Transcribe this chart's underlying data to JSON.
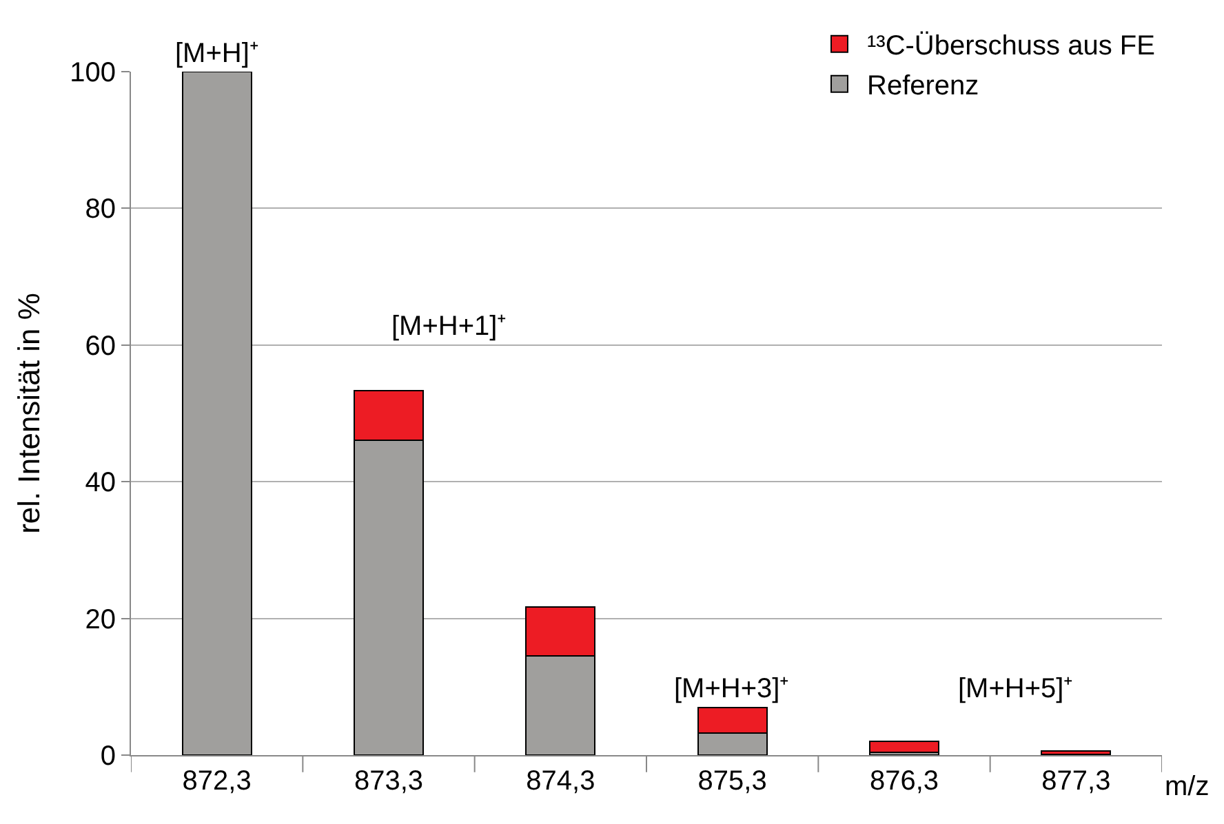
{
  "chart_data": {
    "type": "bar",
    "stacked": true,
    "ylabel": "rel. Intensität in %",
    "xlabel": "m/z",
    "categories": [
      "872,3",
      "873,3",
      "874,3",
      "875,3",
      "876,3",
      "877,3"
    ],
    "series": [
      {
        "name": "Referenz",
        "color": "#a09f9d",
        "values": [
          100,
          46.1,
          14.5,
          3.2,
          0.4,
          0.1
        ]
      },
      {
        "name": "¹³C-Überschuss aus FE",
        "color": "#ed1c24",
        "values": [
          null,
          7.2,
          7.2,
          3.8,
          1.6,
          0.5
        ]
      }
    ],
    "ylim": [
      0,
      100
    ],
    "yticks": [
      0,
      20,
      40,
      60,
      80,
      100
    ],
    "grid": "y",
    "legend": "top right",
    "annotations": [
      {
        "text": "[M+H]⁺",
        "x": "872,3",
        "y": 100
      },
      "[M+H+1]⁺",
      {
        "text": "[M+H+3]⁺",
        "x": "875,3",
        "y": 7
      },
      "[M+H+5]⁺"
    ]
  }
}
